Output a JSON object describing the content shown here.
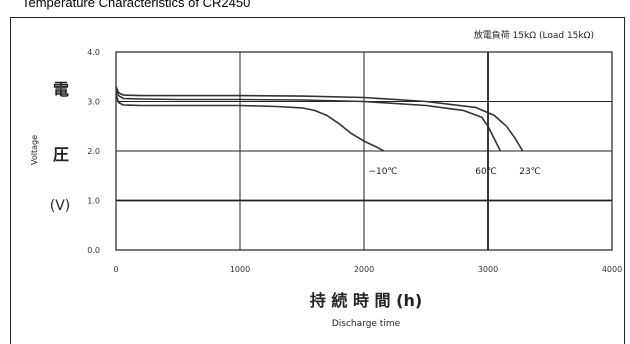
{
  "title": "Temperature Characteristics of CR2450",
  "chart_data": {
    "type": "line",
    "annotation": "放電負荷 15kΩ (Load 15kΩ)",
    "xlabel_jp": "持 続 時 間 (h)",
    "xlabel_en": "Discharge time",
    "ylabel_jp_1": "電",
    "ylabel_jp_2": "圧",
    "ylabel_unit": "(V)",
    "ylabel_en": "Voltage",
    "x_ticks": [
      "0",
      "1000",
      "2000",
      "3000",
      "4000"
    ],
    "y_ticks": [
      "4.0",
      "3.0",
      "2.0",
      "1.0",
      "0.0"
    ],
    "xlim": [
      0,
      4000
    ],
    "ylim": [
      0,
      4
    ],
    "series": [
      {
        "name": "−10℃",
        "color": "#333333",
        "x": [
          0,
          20,
          60,
          200,
          500,
          1000,
          1300,
          1500,
          1600,
          1700,
          1800,
          1900,
          2000,
          2100,
          2160
        ],
        "y": [
          3.15,
          2.98,
          2.93,
          2.92,
          2.92,
          2.92,
          2.9,
          2.87,
          2.82,
          2.72,
          2.55,
          2.35,
          2.2,
          2.08,
          2.0
        ]
      },
      {
        "name": "60℃",
        "color": "#333333",
        "x": [
          0,
          20,
          60,
          200,
          500,
          1000,
          1500,
          2000,
          2500,
          2800,
          2950,
          3000,
          3050,
          3100
        ],
        "y": [
          3.25,
          3.12,
          3.06,
          3.05,
          3.04,
          3.04,
          3.03,
          3.0,
          2.92,
          2.82,
          2.68,
          2.5,
          2.25,
          2.0
        ]
      },
      {
        "name": "23℃",
        "color": "#333333",
        "x": [
          0,
          20,
          60,
          200,
          500,
          1000,
          1500,
          2000,
          2500,
          2900,
          3050,
          3150,
          3220,
          3280
        ],
        "y": [
          3.3,
          3.18,
          3.13,
          3.12,
          3.12,
          3.12,
          3.11,
          3.08,
          3.0,
          2.88,
          2.72,
          2.5,
          2.25,
          2.0
        ]
      }
    ]
  }
}
